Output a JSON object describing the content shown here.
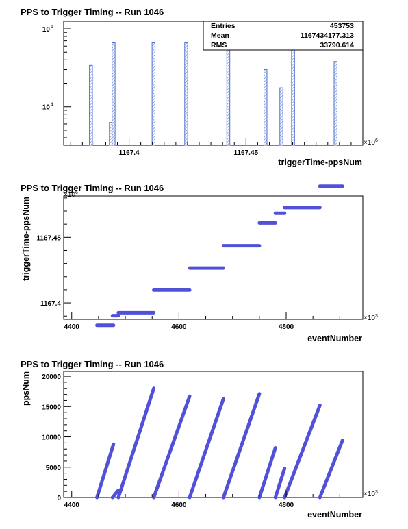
{
  "chart_data": [
    {
      "type": "bar",
      "title": "PPS to Trigger Timing -- Run 1046",
      "xlabel": "triggerTime-ppsNum",
      "ylabel": "",
      "x_multiplier": "×10",
      "x_multiplier_exp": "6",
      "xlim": [
        1167.372,
        1167.5
      ],
      "xticks": [
        1167.4,
        1167.45
      ],
      "ylog": true,
      "ylim": [
        3200,
        125000
      ],
      "yticks": [
        {
          "value": 10000,
          "base": "10",
          "exp": "4"
        },
        {
          "value": 100000,
          "base": "10",
          "exp": "5"
        }
      ],
      "bin_width": 0.0013,
      "bins": [
        {
          "x": 1167.383,
          "value": 34000
        },
        {
          "x": 1167.3915,
          "value": 6300
        },
        {
          "x": 1167.3927,
          "value": 66000
        },
        {
          "x": 1167.4098,
          "value": 66000
        },
        {
          "x": 1167.4238,
          "value": 66000
        },
        {
          "x": 1167.4418,
          "value": 66000
        },
        {
          "x": 1167.4577,
          "value": 30000
        },
        {
          "x": 1167.4645,
          "value": 17500
        },
        {
          "x": 1167.4695,
          "value": 66000
        },
        {
          "x": 1167.4877,
          "value": 38000
        }
      ],
      "stats": [
        {
          "label": "Entries",
          "value": "453753"
        },
        {
          "label": "Mean",
          "value": "1167434177.313"
        },
        {
          "label": "RMS",
          "value": "33790.614"
        }
      ],
      "colors": {
        "fill": "#6a8dd4",
        "line": "#4f6fd0"
      }
    },
    {
      "type": "scatter",
      "title": "PPS to Trigger Timing -- Run 1046",
      "xlabel": "eventNumber",
      "ylabel": "triggerTime-ppsNum",
      "x_multiplier": "×10",
      "x_multiplier_exp": "3",
      "y_multiplier": "×10",
      "y_multiplier_exp": "6",
      "xlim": [
        4385,
        4943
      ],
      "ylim": [
        1167.3875,
        1167.4815
      ],
      "xticks": [
        4400,
        4600,
        4800
      ],
      "yticks": [
        1167.4,
        1167.45
      ],
      "segments": [
        {
          "x": [
            4447,
            4478
          ],
          "y": 1167.3829
        },
        {
          "x": [
            4476,
            4487
          ],
          "y": 1167.3903
        },
        {
          "x": [
            4487,
            4553
          ],
          "y": 1167.3925
        },
        {
          "x": [
            4553,
            4620
          ],
          "y": 1167.4098
        },
        {
          "x": [
            4620,
            4683
          ],
          "y": 1167.4266
        },
        {
          "x": [
            4683,
            4750
          ],
          "y": 1167.4436
        },
        {
          "x": [
            4750,
            4780
          ],
          "y": 1167.4609
        },
        {
          "x": [
            4780,
            4797
          ],
          "y": 1167.4683
        },
        {
          "x": [
            4797,
            4863
          ],
          "y": 1167.4727
        },
        {
          "x": [
            4863,
            4905
          ],
          "y": 1167.4889
        }
      ],
      "colors": {
        "mark": "#5050d8"
      }
    },
    {
      "type": "scatter",
      "title": "PPS to Trigger Timing -- Run 1046",
      "xlabel": "eventNumber",
      "ylabel": "ppsNum",
      "x_multiplier": "×10",
      "x_multiplier_exp": "3",
      "xlim": [
        4385,
        4943
      ],
      "ylim": [
        0,
        20800
      ],
      "xticks": [
        4400,
        4600,
        4800
      ],
      "yticks": [
        0,
        5000,
        10000,
        15000,
        20000
      ],
      "segments": [
        {
          "x0": 4447,
          "y0": 0,
          "x1": 4478,
          "y1": 8800
        },
        {
          "x0": 4476,
          "y0": 0,
          "x1": 4487,
          "y1": 1200
        },
        {
          "x0": 4487,
          "y0": 0,
          "x1": 4553,
          "y1": 18000
        },
        {
          "x0": 4553,
          "y0": 0,
          "x1": 4620,
          "y1": 16700
        },
        {
          "x0": 4620,
          "y0": 0,
          "x1": 4683,
          "y1": 16300
        },
        {
          "x0": 4683,
          "y0": 0,
          "x1": 4750,
          "y1": 17100
        },
        {
          "x0": 4750,
          "y0": 0,
          "x1": 4780,
          "y1": 8200
        },
        {
          "x0": 4780,
          "y0": 0,
          "x1": 4797,
          "y1": 4800
        },
        {
          "x0": 4797,
          "y0": 0,
          "x1": 4863,
          "y1": 15200
        },
        {
          "x0": 4863,
          "y0": 0,
          "x1": 4905,
          "y1": 9400
        }
      ],
      "colors": {
        "mark": "#5050d8"
      }
    }
  ]
}
